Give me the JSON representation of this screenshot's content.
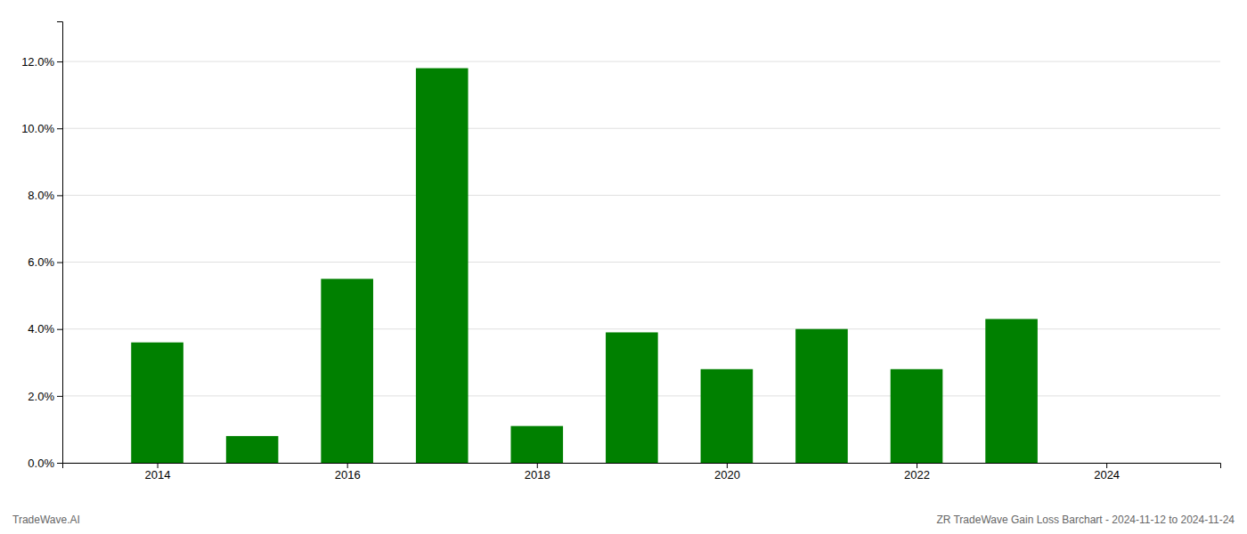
{
  "chart_data": {
    "type": "bar",
    "x": [
      2014,
      2015,
      2016,
      2017,
      2018,
      2019,
      2020,
      2021,
      2022,
      2023
    ],
    "values": [
      0.036,
      0.008,
      0.055,
      0.118,
      0.011,
      0.039,
      0.028,
      0.04,
      0.028,
      0.043
    ],
    "color": "#008000",
    "xlim": [
      2013.0,
      2025.2
    ],
    "xticks": [
      2014,
      2016,
      2018,
      2020,
      2022,
      2024
    ],
    "ylim": [
      0,
      0.132
    ],
    "yticks": [
      {
        "value": 0.0,
        "label": "0.0%"
      },
      {
        "value": 0.02,
        "label": "2.0%"
      },
      {
        "value": 0.04,
        "label": "4.0%"
      },
      {
        "value": 0.06,
        "label": "6.0%"
      },
      {
        "value": 0.08,
        "label": "8.0%"
      },
      {
        "value": 0.1,
        "label": "10.0%"
      },
      {
        "value": 0.12,
        "label": "12.0%"
      }
    ],
    "grid": true,
    "annotations": [
      "TradeWave.AI",
      "ZR TradeWave Gain Loss Barchart - 2024-11-12 to 2024-11-24"
    ]
  }
}
